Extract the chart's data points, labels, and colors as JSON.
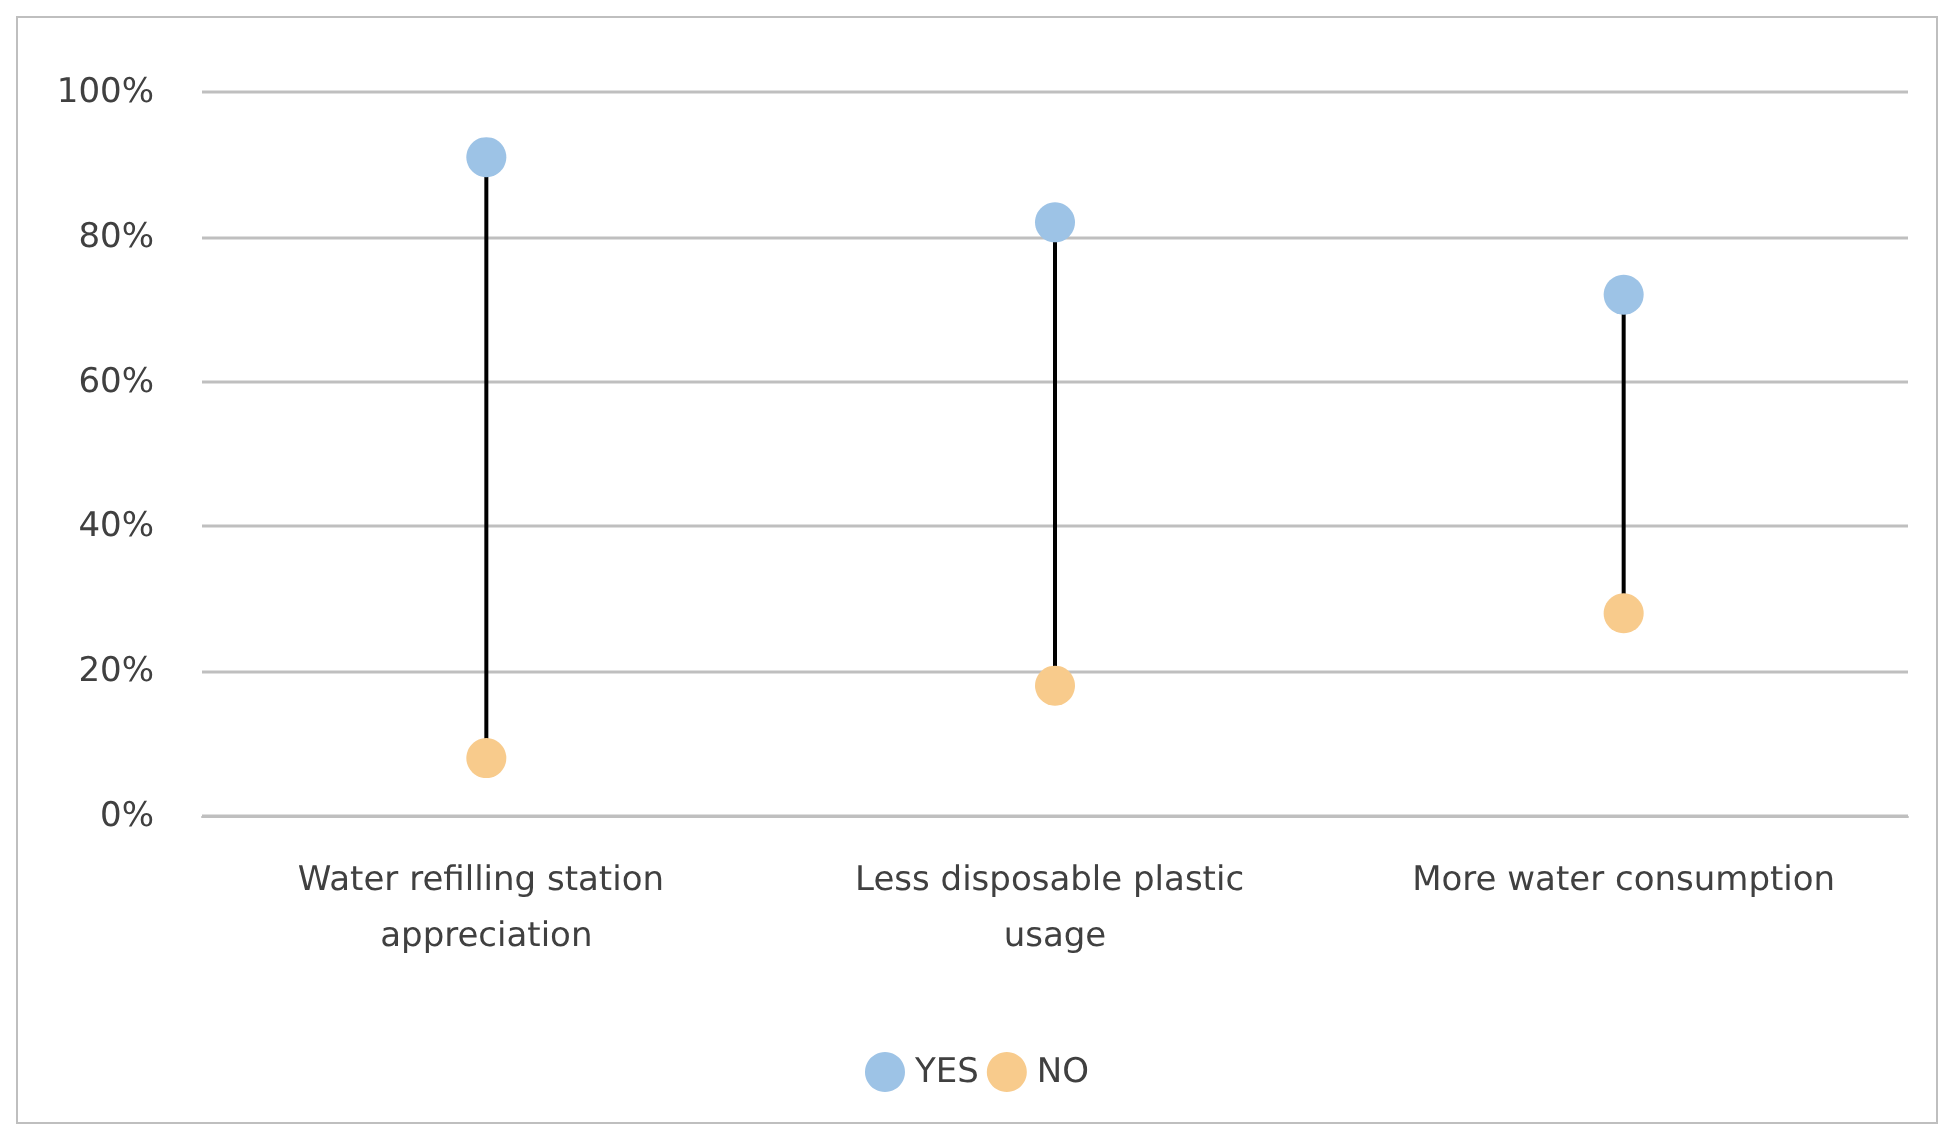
{
  "chart_data": {
    "type": "scatter",
    "categories": [
      "Water refilling station appreciation",
      "Less disposable plastic usage",
      "More water consumption"
    ],
    "series": [
      {
        "name": "YES",
        "color": "#9dc3e6",
        "values": [
          91,
          82,
          72
        ]
      },
      {
        "name": "NO",
        "color": "#f8cb8c",
        "values": [
          8,
          18,
          28
        ]
      }
    ],
    "ylim": [
      0,
      100
    ],
    "yticks": [
      {
        "value": 0,
        "label": "0%"
      },
      {
        "value": 20,
        "label": "20%"
      },
      {
        "value": 40,
        "label": "40%"
      },
      {
        "value": 60,
        "label": "60%"
      },
      {
        "value": 80,
        "label": "80%"
      },
      {
        "value": 100,
        "label": "100%"
      }
    ],
    "grid": "y",
    "legend": "bottom",
    "marker": "circle"
  }
}
